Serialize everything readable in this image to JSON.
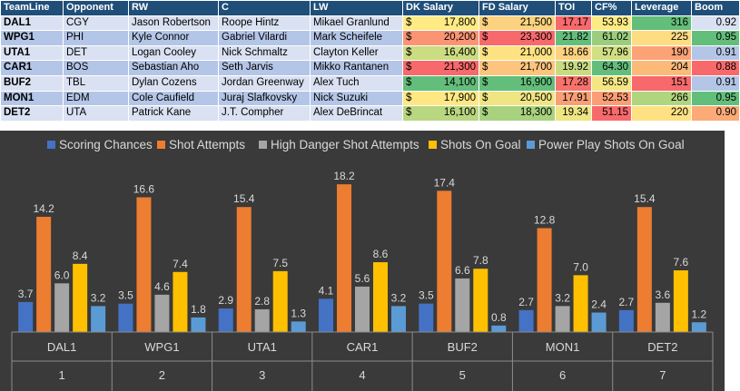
{
  "table": {
    "headers": [
      "TeamLine",
      "Opponent",
      "RW",
      "C",
      "LW",
      "DK Salary",
      "FD Salary",
      "TOI",
      "CF%",
      "Leverage",
      "Boom"
    ],
    "currency": "$",
    "rows": [
      {
        "team": "DAL1",
        "opp": "CGY",
        "rw": "Jason Robertson",
        "c": "Roope Hintz",
        "lw": "Mikael Granlund",
        "dk": "17,800",
        "fd": "21,500",
        "toi": "17.17",
        "cf": "53.93",
        "lev": "316",
        "boom": "0.92",
        "colors": {
          "dk": "#ffeb84",
          "fd": "#fbd27f",
          "toi": "#f8696b",
          "cf": "#ffeb84",
          "lev": "#63be7b",
          "boom": "#d9e1f2"
        }
      },
      {
        "team": "WPG1",
        "opp": "PHI",
        "rw": "Kyle Connor",
        "c": "Gabriel Vilardi",
        "lw": "Mark Scheifele",
        "dk": "20,200",
        "fd": "23,300",
        "toi": "21.82",
        "cf": "61.02",
        "lev": "225",
        "boom": "0.95",
        "colors": {
          "dk": "#fa9473",
          "fd": "#f8696b",
          "toi": "#63be7b",
          "cf": "#9ccd7e",
          "lev": "#fddc82",
          "boom": "#63be7b"
        }
      },
      {
        "team": "UTA1",
        "opp": "DET",
        "rw": "Logan Cooley",
        "c": "Nick Schmaltz",
        "lw": "Clayton Keller",
        "dk": "16,400",
        "fd": "21,000",
        "toi": "18.66",
        "cf": "57.96",
        "lev": "190",
        "boom": "0.91",
        "colors": {
          "dk": "#cbdc81",
          "fd": "#fee282",
          "toi": "#fdd17f",
          "cf": "#d2de82",
          "lev": "#fba276",
          "boom": "#b4c6e7"
        }
      },
      {
        "team": "CAR1",
        "opp": "BOS",
        "rw": "Sebastian Aho",
        "c": "Seth Jarvis",
        "lw": "Mikko Rantanen",
        "dk": "21,300",
        "fd": "21,700",
        "toi": "19.92",
        "cf": "64.30",
        "lev": "204",
        "boom": "0.88",
        "colors": {
          "dk": "#f8696b",
          "fd": "#fcc47c",
          "toi": "#c9db81",
          "cf": "#63be7b",
          "lev": "#fcba79",
          "boom": "#f8696b"
        }
      },
      {
        "team": "BUF2",
        "opp": "TBL",
        "rw": "Dylan Cozens",
        "c": "Jordan Greenway",
        "lw": "Alex Tuch",
        "dk": "14,100",
        "fd": "16,900",
        "toi": "17.28",
        "cf": "56.59",
        "lev": "151",
        "boom": "0.91",
        "colors": {
          "dk": "#63be7b",
          "fd": "#63be7b",
          "toi": "#f8726c",
          "cf": "#f4e683",
          "lev": "#f8696b",
          "boom": "#b4c6e7"
        }
      },
      {
        "team": "MON1",
        "opp": "EDM",
        "rw": "Cole Caufield",
        "c": "Juraj Slafkovsky",
        "lw": "Nick Suzuki",
        "dk": "17,900",
        "fd": "20,500",
        "toi": "17.91",
        "cf": "52.53",
        "lev": "266",
        "boom": "0.95",
        "colors": {
          "dk": "#ffe883",
          "fd": "#f0e583",
          "toi": "#f99f75",
          "cf": "#fb9e75",
          "lev": "#b0d57f",
          "boom": "#63be7b"
        }
      },
      {
        "team": "DET2",
        "opp": "UTA",
        "rw": "Patrick Kane",
        "c": "J.T. Compher",
        "lw": "Alex DeBrincat",
        "dk": "16,100",
        "fd": "18,300",
        "toi": "19.34",
        "cf": "51.15",
        "lev": "220",
        "boom": "0.90",
        "colors": {
          "dk": "#b9d680",
          "fd": "#a9d27f",
          "toi": "#eee583",
          "cf": "#f8696b",
          "lev": "#fee182",
          "boom": "#fcaa77"
        }
      }
    ]
  },
  "chart_data": {
    "type": "bar",
    "categories": [
      "DAL1",
      "WPG1",
      "UTA1",
      "CAR1",
      "BUF2",
      "MON1",
      "DET2"
    ],
    "category_indices": [
      "1",
      "2",
      "3",
      "4",
      "5",
      "6",
      "7"
    ],
    "series": [
      {
        "name": "Scoring Chances",
        "color": "#4472c4",
        "values": [
          3.7,
          3.5,
          2.9,
          4.1,
          3.5,
          2.7,
          2.7
        ]
      },
      {
        "name": "Shot Attempts",
        "color": "#ed7d31",
        "values": [
          14.2,
          16.6,
          15.4,
          18.2,
          17.4,
          12.8,
          15.4
        ]
      },
      {
        "name": "High Danger Shot Attempts",
        "color": "#a5a5a5",
        "values": [
          6.0,
          4.6,
          2.8,
          5.6,
          6.6,
          3.2,
          3.6
        ]
      },
      {
        "name": "Shots On Goal",
        "color": "#ffc000",
        "values": [
          8.4,
          7.4,
          7.5,
          8.6,
          7.8,
          7.0,
          7.6
        ]
      },
      {
        "name": "Power Play Shots On Goal",
        "color": "#5b9bd5",
        "values": [
          3.2,
          1.8,
          1.3,
          3.2,
          0.8,
          2.4,
          1.2
        ]
      }
    ],
    "labels": [
      [
        "3.7",
        "3.5",
        "2.9",
        "4.1",
        "3.5",
        "2.7",
        "2.7"
      ],
      [
        "14.2",
        "16.6",
        "15.4",
        "18.2",
        "17.4",
        "12.8",
        "15.4"
      ],
      [
        "6.0",
        "4.6",
        "2.8",
        "5.6",
        "6.6",
        "3.2",
        "3.6"
      ],
      [
        "8.4",
        "7.4",
        "7.5",
        "8.6",
        "7.8",
        "7.0",
        "7.6"
      ],
      [
        "3.2",
        "1.8",
        "1.3",
        "3.2",
        "0.8",
        "2.4",
        "1.2"
      ]
    ],
    "ylim": [
      0,
      19
    ],
    "legend_position": "top",
    "grid": false
  }
}
